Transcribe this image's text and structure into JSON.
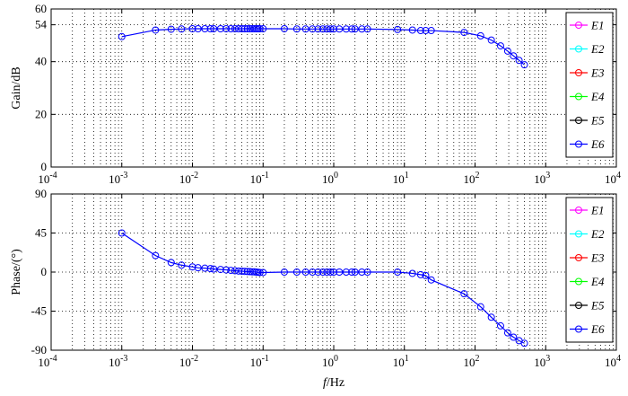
{
  "chart_data": [
    {
      "type": "line",
      "ylabel": "Gain/dB",
      "xlabel": "",
      "xscale": "log",
      "xlim": [
        0.0001,
        10000
      ],
      "ylim": [
        0,
        60
      ],
      "yticks": [
        {
          "value": 0,
          "label": "0"
        },
        {
          "value": 20,
          "label": "20"
        },
        {
          "value": 40,
          "label": "40"
        },
        {
          "value": 54,
          "label": "54"
        },
        {
          "value": 60,
          "label": "60"
        }
      ],
      "grid": "dotted",
      "legend": {
        "position": "right",
        "entries": [
          {
            "label": "E1",
            "color": "#ff00ff"
          },
          {
            "label": "E2",
            "color": "#00ffff"
          },
          {
            "label": "E3",
            "color": "#ff0000"
          },
          {
            "label": "E4",
            "color": "#00ff00"
          },
          {
            "label": "E5",
            "color": "#000000"
          },
          {
            "label": "E6",
            "color": "#0000ff"
          }
        ]
      },
      "series": [
        {
          "name": "E6",
          "color": "#0000ff",
          "marker": "circle",
          "x": [
            0.001,
            0.003,
            0.005,
            0.007,
            0.01,
            0.012,
            0.015,
            0.018,
            0.02,
            0.025,
            0.03,
            0.035,
            0.04,
            0.045,
            0.05,
            0.055,
            0.06,
            0.065,
            0.07,
            0.075,
            0.08,
            0.085,
            0.09,
            0.1,
            0.2,
            0.3,
            0.4,
            0.5,
            0.6,
            0.7,
            0.8,
            0.9,
            1,
            1.2,
            1.5,
            1.8,
            2,
            2.5,
            3,
            8,
            13,
            17,
            20,
            24,
            70,
            120,
            170,
            230,
            290,
            350,
            420,
            500
          ],
          "y": [
            49.5,
            52,
            52.3,
            52.4,
            52.5,
            52.5,
            52.5,
            52.5,
            52.5,
            52.5,
            52.5,
            52.5,
            52.5,
            52.5,
            52.5,
            52.5,
            52.5,
            52.5,
            52.5,
            52.5,
            52.5,
            52.5,
            52.5,
            52.5,
            52.5,
            52.4,
            52.4,
            52.4,
            52.4,
            52.4,
            52.4,
            52.4,
            52.4,
            52.4,
            52.4,
            52.4,
            52.4,
            52.4,
            52.4,
            52.2,
            52,
            51.8,
            51.8,
            51.8,
            51.1,
            49.8,
            48.2,
            46,
            44,
            42.2,
            40.5,
            38.8
          ]
        }
      ]
    },
    {
      "type": "line",
      "ylabel": "Phase/(°)",
      "xlabel_pre": "f",
      "xlabel_post": "/Hz",
      "xscale": "log",
      "xlim": [
        0.0001,
        10000
      ],
      "ylim": [
        -90,
        90
      ],
      "yticks": [
        {
          "value": -90,
          "label": "-90"
        },
        {
          "value": -45,
          "label": "-45"
        },
        {
          "value": 0,
          "label": "0"
        },
        {
          "value": 45,
          "label": "45"
        },
        {
          "value": 90,
          "label": "90"
        }
      ],
      "grid": "dotted",
      "legend": {
        "position": "right",
        "entries": [
          {
            "label": "E1",
            "color": "#ff00ff"
          },
          {
            "label": "E2",
            "color": "#00ffff"
          },
          {
            "label": "E3",
            "color": "#ff0000"
          },
          {
            "label": "E4",
            "color": "#00ff00"
          },
          {
            "label": "E5",
            "color": "#000000"
          },
          {
            "label": "E6",
            "color": "#0000ff"
          }
        ]
      },
      "series": [
        {
          "name": "E6",
          "color": "#0000ff",
          "marker": "circle",
          "x": [
            0.001,
            0.003,
            0.005,
            0.007,
            0.01,
            0.012,
            0.015,
            0.018,
            0.02,
            0.025,
            0.03,
            0.035,
            0.04,
            0.045,
            0.05,
            0.055,
            0.06,
            0.065,
            0.07,
            0.075,
            0.08,
            0.085,
            0.09,
            0.1,
            0.2,
            0.3,
            0.4,
            0.5,
            0.6,
            0.7,
            0.8,
            0.9,
            1,
            1.2,
            1.5,
            1.8,
            2,
            2.5,
            3,
            8,
            13,
            17,
            20,
            24,
            70,
            120,
            170,
            230,
            290,
            350,
            420,
            500
          ],
          "y": [
            45,
            19,
            11,
            8,
            6,
            5,
            4.5,
            4,
            3.5,
            3,
            2.5,
            2,
            1.5,
            1.2,
            1,
            0.8,
            0.6,
            0.5,
            0.3,
            0.2,
            0,
            -0.3,
            -0.5,
            -0.5,
            0,
            0,
            0,
            0,
            0,
            0,
            0,
            0,
            0,
            0,
            0,
            0,
            0,
            0,
            0,
            0,
            -1.5,
            -3,
            -4,
            -9,
            -25,
            -40,
            -52,
            -62,
            -70,
            -75,
            -79,
            -82
          ]
        }
      ]
    }
  ]
}
